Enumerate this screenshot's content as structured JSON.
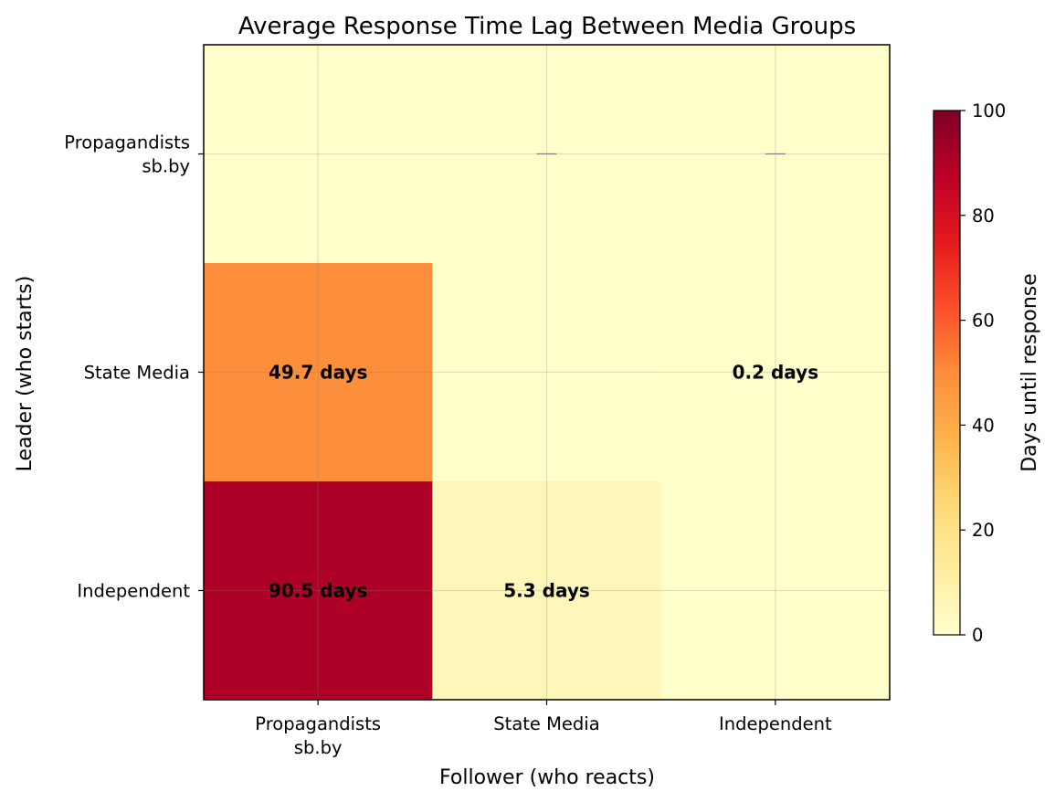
{
  "chart_data": {
    "type": "heatmap",
    "title": "Average Response Time Lag Between Media Groups",
    "xlabel": "Follower (who reacts)",
    "ylabel": "Leader (who starts)",
    "x_categories": [
      [
        "Propagandists",
        "sb.by"
      ],
      [
        "State Media"
      ],
      [
        "Independent"
      ]
    ],
    "y_categories": [
      [
        "Propagandists",
        "sb.by"
      ],
      [
        "State Media"
      ],
      [
        "Independent"
      ]
    ],
    "values": [
      [
        0,
        null,
        null
      ],
      [
        49.7,
        0,
        0.2
      ],
      [
        90.5,
        5.3,
        0
      ]
    ],
    "cell_labels": [
      [
        "",
        "",
        ""
      ],
      [
        "49.7 days",
        "",
        "0.2 days"
      ],
      [
        "90.5 days",
        "5.3 days",
        ""
      ]
    ],
    "missing_marker": "—",
    "colormap": "YlOrRd",
    "vlim": [
      0,
      100
    ],
    "colorbar": {
      "label": "Days until response",
      "ticks": [
        "0",
        "20",
        "40",
        "60",
        "80",
        "100"
      ],
      "tick_values": [
        0,
        20,
        40,
        60,
        80,
        100
      ]
    },
    "grid": true,
    "label_colors": {
      "dark": "#000000",
      "light": "#ffffff"
    }
  }
}
